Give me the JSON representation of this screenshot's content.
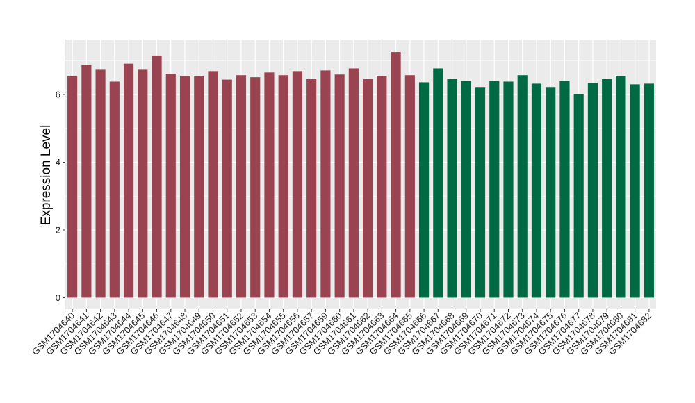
{
  "chart_data": {
    "type": "bar",
    "title": "",
    "xlabel": "",
    "ylabel": "Expression Level",
    "ylim": [
      0,
      7.6
    ],
    "yticks": [
      0,
      2,
      4,
      6
    ],
    "ytick_labels": [
      "0",
      "2",
      "4",
      "6"
    ],
    "grid": true,
    "legend": "none",
    "categories": [
      "GSM1704640",
      "GSM1704641",
      "GSM1704642",
      "GSM1704643",
      "GSM1704644",
      "GSM1704645",
      "GSM1704646",
      "GSM1704647",
      "GSM1704648",
      "GSM1704649",
      "GSM1704650",
      "GSM1704651",
      "GSM1704652",
      "GSM1704653",
      "GSM1704654",
      "GSM1704655",
      "GSM1704656",
      "GSM1704657",
      "GSM1704659",
      "GSM1704660",
      "GSM1704661",
      "GSM1704662",
      "GSM1704663",
      "GSM1704664",
      "GSM1704665",
      "GSM1704666",
      "GSM1704667",
      "GSM1704668",
      "GSM1704669",
      "GSM1704670",
      "GSM1704671",
      "GSM1704672",
      "GSM1704673",
      "GSM1704674",
      "GSM1704675",
      "GSM1704676",
      "GSM1704677",
      "GSM1704678",
      "GSM1704679",
      "GSM1704680",
      "GSM1704681",
      "GSM1704682"
    ],
    "values": [
      6.55,
      6.87,
      6.73,
      6.38,
      6.91,
      6.73,
      7.15,
      6.61,
      6.55,
      6.55,
      6.69,
      6.44,
      6.57,
      6.51,
      6.65,
      6.57,
      6.69,
      6.47,
      6.71,
      6.59,
      6.77,
      6.47,
      6.55,
      7.25,
      6.57,
      6.36,
      6.77,
      6.47,
      6.4,
      6.22,
      6.4,
      6.38,
      6.57,
      6.32,
      6.22,
      6.4,
      6.0,
      6.34,
      6.47,
      6.55,
      6.3,
      6.32
    ],
    "groups": [
      "A",
      "A",
      "A",
      "A",
      "A",
      "A",
      "A",
      "A",
      "A",
      "A",
      "A",
      "A",
      "A",
      "A",
      "A",
      "A",
      "A",
      "A",
      "A",
      "A",
      "A",
      "A",
      "A",
      "A",
      "A",
      "B",
      "B",
      "B",
      "B",
      "B",
      "B",
      "B",
      "B",
      "B",
      "B",
      "B",
      "B",
      "B",
      "B",
      "B",
      "B",
      "B"
    ],
    "colors": {
      "A": "#9b4451",
      "B": "#006a44"
    },
    "panel_background": "#ebebeb",
    "grid_color": "#ffffff"
  }
}
